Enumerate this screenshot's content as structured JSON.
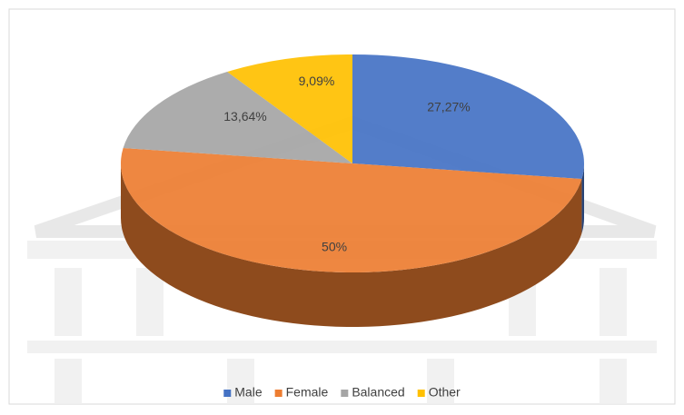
{
  "chart_data": {
    "type": "pie3d",
    "categories": [
      "Male",
      "Female",
      "Balanced",
      "Other"
    ],
    "values": [
      27.27,
      50,
      13.64,
      9.09
    ],
    "value_labels": [
      "27,27%",
      "50%",
      "13,64%",
      "9,09%"
    ],
    "colors": [
      "#4472c4",
      "#ed7d31",
      "#a5a5a5",
      "#ffc000"
    ],
    "legend": "bottom"
  }
}
